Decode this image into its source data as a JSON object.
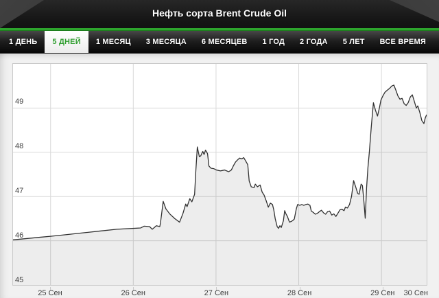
{
  "header": {
    "title": "Нефть сорта Brent Crude Oil"
  },
  "tabs": [
    {
      "label": "1 ДЕНЬ",
      "active": false
    },
    {
      "label": "5 ДНЕЙ",
      "active": true
    },
    {
      "label": "1 МЕСЯЦ",
      "active": false
    },
    {
      "label": "3 МЕСЯЦА",
      "active": false
    },
    {
      "label": "6 МЕСЯЦЕВ",
      "active": false
    },
    {
      "label": "1 ГОД",
      "active": false
    },
    {
      "label": "2 ГОДА",
      "active": false
    },
    {
      "label": "5 ЛЕТ",
      "active": false
    },
    {
      "label": "ВСЕ ВРЕМЯ",
      "active": false
    }
  ],
  "colors": {
    "accent_green": "#2da52d",
    "active_tab_text": "#2f9e2f",
    "line": "#303030",
    "area_fill": "rgba(0,0,0,0.072)",
    "grid": "#d9d9d9",
    "panel_border": "#c9c9c9",
    "page_bg": "#f1f1f1",
    "tick_text": "#3f3f3f"
  },
  "chart_data": {
    "type": "area",
    "title": "Нефть сорта Brent Crude Oil",
    "xlabel": "",
    "ylabel": "",
    "x_unit": "days since 25 Sep 00:00",
    "xlim": [
      -0.454,
      4.546
    ],
    "ylim": [
      45,
      50
    ],
    "grid": true,
    "legend": "none",
    "y_ticks": [
      45,
      46,
      47,
      48,
      49
    ],
    "x_ticks": [
      {
        "t": 0,
        "label": "25 Сен",
        "grid": true
      },
      {
        "t": 1,
        "label": "26 Сен",
        "grid": true
      },
      {
        "t": 2,
        "label": "27 Сен",
        "grid": true
      },
      {
        "t": 3,
        "label": "28 Сен",
        "grid": true
      },
      {
        "t": 4,
        "label": "29 Сен",
        "grid": true
      },
      {
        "t": 4.4,
        "label": "30 Сен",
        "grid": false
      }
    ],
    "points": [
      [
        -0.454,
        46.02
      ],
      [
        -0.29,
        46.05
      ],
      [
        -0.12,
        46.08
      ],
      [
        0.0,
        46.1
      ],
      [
        0.2,
        46.14
      ],
      [
        0.4,
        46.18
      ],
      [
        0.6,
        46.22
      ],
      [
        0.8,
        46.26
      ],
      [
        1.007,
        46.28
      ],
      [
        1.089,
        46.29
      ],
      [
        1.13,
        46.33
      ],
      [
        1.196,
        46.32
      ],
      [
        1.229,
        46.26
      ],
      [
        1.279,
        46.34
      ],
      [
        1.32,
        46.32
      ],
      [
        1.328,
        46.4
      ],
      [
        1.361,
        46.89
      ],
      [
        1.394,
        46.72
      ],
      [
        1.444,
        46.6
      ],
      [
        1.502,
        46.5
      ],
      [
        1.559,
        46.42
      ],
      [
        1.601,
        46.62
      ],
      [
        1.634,
        46.83
      ],
      [
        1.65,
        46.77
      ],
      [
        1.683,
        46.95
      ],
      [
        1.708,
        46.88
      ],
      [
        1.741,
        47.05
      ],
      [
        1.757,
        47.6
      ],
      [
        1.774,
        48.12
      ],
      [
        1.799,
        47.9
      ],
      [
        1.815,
        47.92
      ],
      [
        1.84,
        48.02
      ],
      [
        1.856,
        47.95
      ],
      [
        1.873,
        48.05
      ],
      [
        1.898,
        47.97
      ],
      [
        1.914,
        47.69
      ],
      [
        1.939,
        47.64
      ],
      [
        1.972,
        47.63
      ],
      [
        2.005,
        47.6
      ],
      [
        2.054,
        47.58
      ],
      [
        2.104,
        47.6
      ],
      [
        2.153,
        47.56
      ],
      [
        2.186,
        47.6
      ],
      [
        2.211,
        47.7
      ],
      [
        2.236,
        47.78
      ],
      [
        2.261,
        47.83
      ],
      [
        2.285,
        47.87
      ],
      [
        2.31,
        47.85
      ],
      [
        2.335,
        47.88
      ],
      [
        2.36,
        47.8
      ],
      [
        2.384,
        47.72
      ],
      [
        2.401,
        47.35
      ],
      [
        2.426,
        47.22
      ],
      [
        2.459,
        47.2
      ],
      [
        2.475,
        47.28
      ],
      [
        2.5,
        47.22
      ],
      [
        2.533,
        47.26
      ],
      [
        2.558,
        47.1
      ],
      [
        2.582,
        47.03
      ],
      [
        2.607,
        46.9
      ],
      [
        2.632,
        46.76
      ],
      [
        2.657,
        46.85
      ],
      [
        2.682,
        46.82
      ],
      [
        2.698,
        46.7
      ],
      [
        2.715,
        46.5
      ],
      [
        2.739,
        46.32
      ],
      [
        2.756,
        46.28
      ],
      [
        2.772,
        46.34
      ],
      [
        2.789,
        46.3
      ],
      [
        2.814,
        46.45
      ],
      [
        2.83,
        46.68
      ],
      [
        2.847,
        46.6
      ],
      [
        2.863,
        46.55
      ],
      [
        2.888,
        46.42
      ],
      [
        2.913,
        46.44
      ],
      [
        2.929,
        46.46
      ],
      [
        2.946,
        46.49
      ],
      [
        2.97,
        46.72
      ],
      [
        2.987,
        46.82
      ],
      [
        3.012,
        46.8
      ],
      [
        3.036,
        46.82
      ],
      [
        3.061,
        46.8
      ],
      [
        3.086,
        46.82
      ],
      [
        3.11,
        46.83
      ],
      [
        3.135,
        46.8
      ],
      [
        3.152,
        46.67
      ],
      [
        3.176,
        46.64
      ],
      [
        3.201,
        46.6
      ],
      [
        3.226,
        46.62
      ],
      [
        3.251,
        46.66
      ],
      [
        3.275,
        46.69
      ],
      [
        3.3,
        46.63
      ],
      [
        3.325,
        46.6
      ],
      [
        3.35,
        46.66
      ],
      [
        3.374,
        46.67
      ],
      [
        3.399,
        46.58
      ],
      [
        3.424,
        46.61
      ],
      [
        3.449,
        46.55
      ],
      [
        3.473,
        46.62
      ],
      [
        3.498,
        46.7
      ],
      [
        3.523,
        46.71
      ],
      [
        3.548,
        46.68
      ],
      [
        3.564,
        46.76
      ],
      [
        3.589,
        46.74
      ],
      [
        3.614,
        46.82
      ],
      [
        3.638,
        47.0
      ],
      [
        3.663,
        47.36
      ],
      [
        3.688,
        47.22
      ],
      [
        3.713,
        47.07
      ],
      [
        3.729,
        47.05
      ],
      [
        3.754,
        47.28
      ],
      [
        3.77,
        47.25
      ],
      [
        3.787,
        46.9
      ],
      [
        3.804,
        46.51
      ],
      [
        3.82,
        47.2
      ],
      [
        3.837,
        47.66
      ],
      [
        3.853,
        48.0
      ],
      [
        3.878,
        48.6
      ],
      [
        3.903,
        49.12
      ],
      [
        3.927,
        48.95
      ],
      [
        3.952,
        48.82
      ],
      [
        3.977,
        49.02
      ],
      [
        3.993,
        49.18
      ],
      [
        4.018,
        49.28
      ],
      [
        4.043,
        49.36
      ],
      [
        4.068,
        49.4
      ],
      [
        4.101,
        49.45
      ],
      [
        4.125,
        49.5
      ],
      [
        4.15,
        49.52
      ],
      [
        4.175,
        49.4
      ],
      [
        4.2,
        49.27
      ],
      [
        4.224,
        49.2
      ],
      [
        4.249,
        49.22
      ],
      [
        4.274,
        49.1
      ],
      [
        4.299,
        49.06
      ],
      [
        4.323,
        49.12
      ],
      [
        4.348,
        49.25
      ],
      [
        4.373,
        49.3
      ],
      [
        4.398,
        49.15
      ],
      [
        4.422,
        49.0
      ],
      [
        4.439,
        49.05
      ],
      [
        4.464,
        48.9
      ],
      [
        4.488,
        48.72
      ],
      [
        4.513,
        48.65
      ],
      [
        4.53,
        48.78
      ],
      [
        4.546,
        48.85
      ]
    ]
  }
}
